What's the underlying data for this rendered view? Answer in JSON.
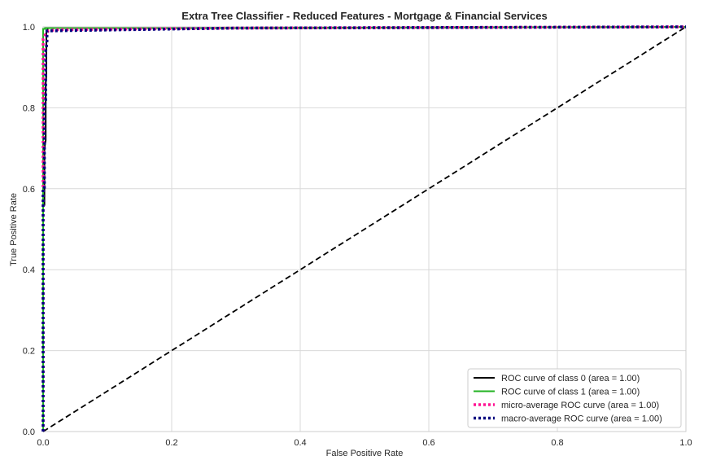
{
  "chart_data": {
    "type": "line",
    "title": "Extra Tree Classifier - Reduced Features - Mortgage & Financial Services",
    "xlabel": "False Positive Rate",
    "ylabel": "True Positive Rate",
    "xlim": [
      0.0,
      1.0
    ],
    "ylim": [
      0.0,
      1.0
    ],
    "xticks": [
      "0.0",
      "0.2",
      "0.4",
      "0.6",
      "0.8",
      "1.0"
    ],
    "yticks": [
      "0.0",
      "0.2",
      "0.4",
      "0.6",
      "0.8",
      "1.0"
    ],
    "grid": true,
    "legend_placement": "lower-right",
    "series": [
      {
        "name": "ROC curve of class 0 (area = 1.00)",
        "color": "#000000",
        "style": "solid",
        "x": [
          0.0,
          0.0,
          0.002,
          0.002,
          0.004,
          0.004,
          0.005,
          0.005,
          0.007,
          0.007,
          0.3,
          1.0
        ],
        "y": [
          0.0,
          0.56,
          0.56,
          0.7,
          0.72,
          0.86,
          0.88,
          0.99,
          0.99,
          0.997,
          0.997,
          1.0
        ]
      },
      {
        "name": "ROC curve of class 1 (area = 1.00)",
        "color": "#21b321",
        "style": "solid",
        "x": [
          0.0,
          0.0,
          0.003,
          0.003,
          0.3,
          1.0
        ],
        "y": [
          0.0,
          0.995,
          0.995,
          0.997,
          0.997,
          1.0
        ]
      },
      {
        "name": "micro-average ROC curve (area = 1.00)",
        "color": "#ff1493",
        "style": "dotted",
        "x": [
          0.0,
          0.0,
          0.003,
          0.006,
          0.008,
          0.02,
          0.3,
          1.0
        ],
        "y": [
          0.0,
          0.97,
          0.98,
          0.985,
          0.99,
          0.993,
          0.997,
          1.0
        ]
      },
      {
        "name": "macro-average ROC curve (area = 1.00)",
        "color": "#000080",
        "style": "dotted",
        "x": [
          0.0,
          0.0,
          0.002,
          0.002,
          0.004,
          0.004,
          0.006,
          0.006,
          0.3,
          1.0
        ],
        "y": [
          0.0,
          0.6,
          0.6,
          0.8,
          0.82,
          0.94,
          0.96,
          0.99,
          0.997,
          1.0
        ]
      }
    ],
    "reference_line": {
      "color": "#000000",
      "style": "dashed",
      "x": [
        0.0,
        1.0
      ],
      "y": [
        0.0,
        1.0
      ]
    }
  }
}
